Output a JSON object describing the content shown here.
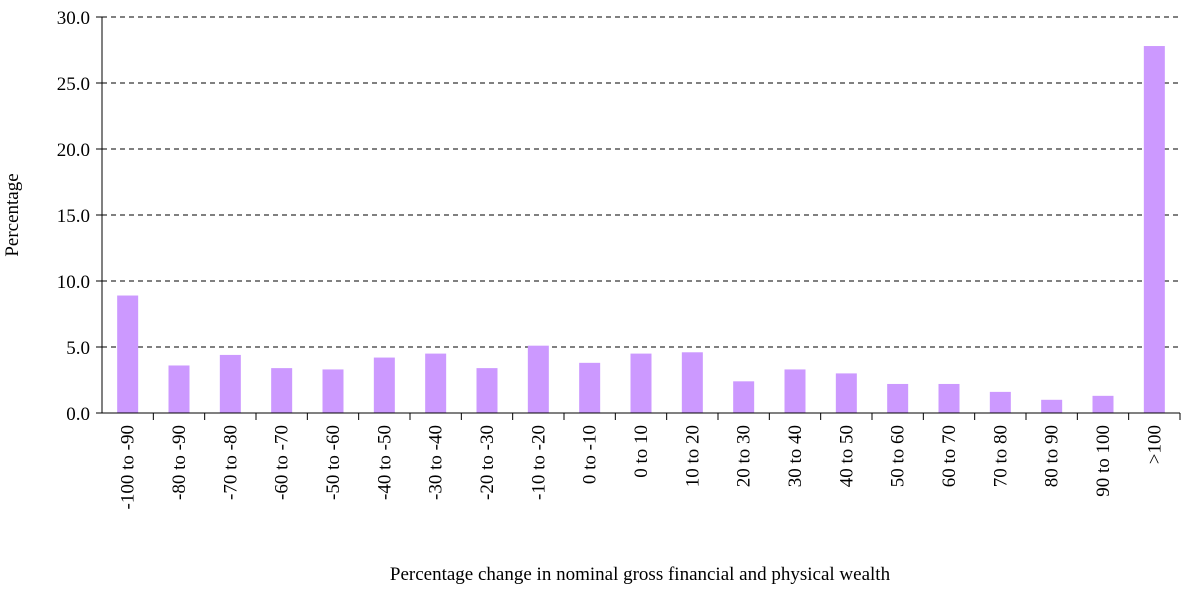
{
  "chart_data": {
    "type": "bar",
    "x_label": "Percentage change in nominal gross financial and physical wealth",
    "y_label": "Percentage",
    "categories": [
      "-100 to -90",
      "-80 to -90",
      "-70 to -80",
      "-60 to -70",
      "-50 to -60",
      "-40 to -50",
      "-30 to -40",
      "-20 to -30",
      "-10 to -20",
      "0 to -10",
      "0 to 10",
      "10 to 20",
      "20 to 30",
      "30 to 40",
      "40 to 50",
      "50 to 60",
      "60 to 70",
      "70 to 80",
      "80 to 90",
      "90 to 100",
      ">100"
    ],
    "values": [
      8.9,
      3.6,
      4.4,
      3.4,
      3.3,
      4.2,
      4.5,
      3.4,
      5.1,
      3.8,
      4.5,
      4.6,
      2.4,
      3.3,
      3.0,
      2.2,
      2.2,
      1.6,
      1.0,
      1.3,
      27.8
    ],
    "color": "#cc99ff",
    "ylim": [
      0,
      30
    ],
    "yticks": [
      {
        "value": 0,
        "label": "0.0"
      },
      {
        "value": 5,
        "label": "5.0"
      },
      {
        "value": 10,
        "label": "10.0"
      },
      {
        "value": 15,
        "label": "15.0"
      },
      {
        "value": 20,
        "label": "20.0"
      },
      {
        "value": 25,
        "label": "25.0"
      },
      {
        "value": 30,
        "label": "30.0"
      }
    ],
    "grid": true
  }
}
